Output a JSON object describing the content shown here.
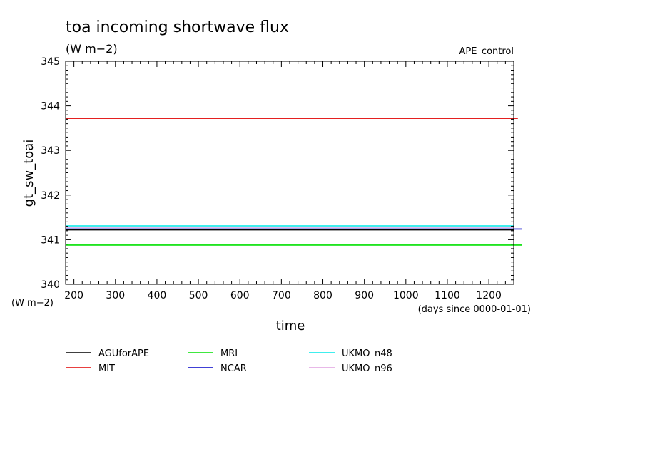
{
  "chart_data": {
    "type": "line",
    "title": "toa incoming shortwave flux",
    "subtitle": "(W m−2)",
    "experiment": "APE_control",
    "xlabel": "time",
    "x_units": "(days since 0000-01-01)",
    "ylabel": "gt_sw_toai",
    "y_units": "(W m−2)",
    "xlim": [
      180,
      1260
    ],
    "ylim": [
      340,
      345
    ],
    "x_ticks": [
      200,
      300,
      400,
      500,
      600,
      700,
      800,
      900,
      1000,
      1100,
      1200
    ],
    "y_ticks": [
      340,
      341,
      342,
      343,
      344,
      345
    ],
    "grid": false,
    "legend_position": "bottom",
    "series": [
      {
        "name": "AGUforAPE",
        "color": "#000000",
        "x": [
          180,
          1260
        ],
        "values": [
          341.22,
          341.22
        ]
      },
      {
        "name": "MIT",
        "color": "#e00000",
        "x": [
          180,
          1270
        ],
        "values": [
          343.72,
          343.72
        ]
      },
      {
        "name": "MRI",
        "color": "#00e000",
        "x": [
          180,
          1280
        ],
        "values": [
          340.88,
          340.88
        ]
      },
      {
        "name": "NCAR",
        "color": "#0000c8",
        "x": [
          180,
          1280
        ],
        "values": [
          341.24,
          341.24
        ]
      },
      {
        "name": "UKMO_n48",
        "color": "#00e8e8",
        "x": [
          180,
          1260
        ],
        "values": [
          341.31,
          341.31
        ]
      },
      {
        "name": "UKMO_n96",
        "color": "#e0a0e0",
        "x": [
          180,
          1260
        ],
        "values": [
          341.28,
          341.28
        ]
      }
    ]
  }
}
